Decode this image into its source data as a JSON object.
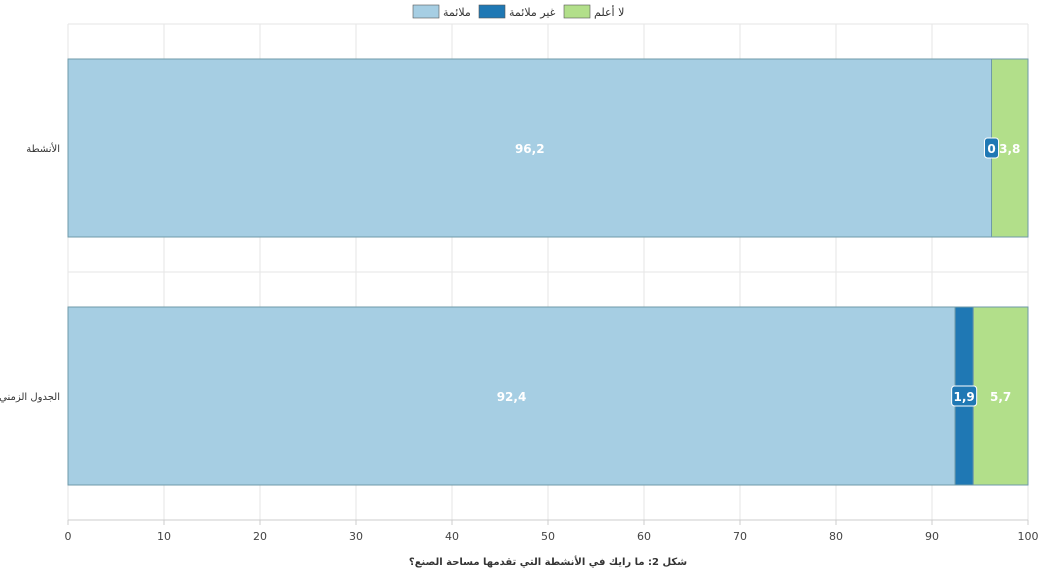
{
  "chart_data": {
    "type": "bar",
    "orientation": "horizontal",
    "stacked": true,
    "categories": [
      "الأنشطة",
      "الجدول الزمني"
    ],
    "series": [
      {
        "name": "ملائمة",
        "color": "#a6cee3",
        "values": [
          96.2,
          92.4
        ],
        "labels": [
          "96,2",
          "92,4"
        ]
      },
      {
        "name": "غير ملائمة",
        "color": "#1f78b4",
        "values": [
          0,
          1.9
        ],
        "labels": [
          "0",
          "1,9"
        ]
      },
      {
        "name": "لا أعلم",
        "color": "#b2df8a",
        "values": [
          3.8,
          5.7
        ],
        "labels": [
          "3,8",
          "5,7"
        ]
      }
    ],
    "xlim": [
      0,
      100
    ],
    "xticks": [
      0,
      10,
      20,
      30,
      40,
      50,
      60,
      70,
      80,
      90,
      100
    ],
    "xlabel": "شكل 2: ما رايك في الأنشطة التي تقدمها مساحة الصنع؟",
    "ylabel": "",
    "grid": true,
    "legend_position": "top-center"
  }
}
